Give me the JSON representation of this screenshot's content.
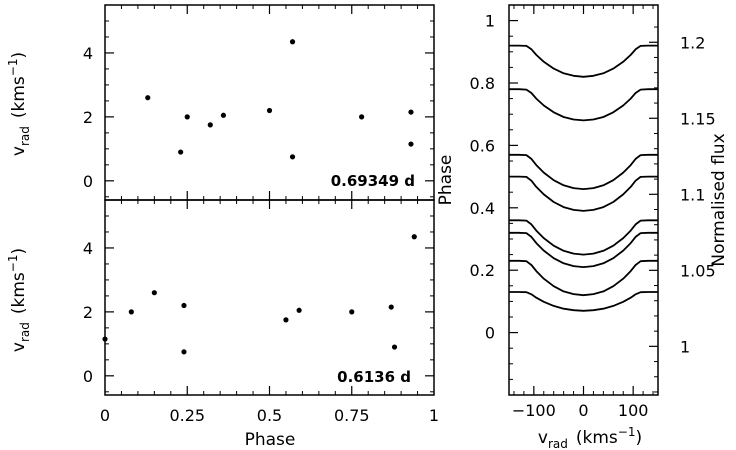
{
  "chart_data": [
    {
      "type": "scatter",
      "annotation": "0.69349 d",
      "xlabel": "",
      "ylabel": "v",
      "ylabel_sub": "rad",
      "ylabel_unit": "(kms",
      "ylabel_unit_sup": "−1",
      "ylabel_unit_close": ")",
      "xlim": [
        0,
        1
      ],
      "ylim": [
        -0.6,
        5.5
      ],
      "yticks": [
        0,
        2,
        4
      ],
      "ytick_labels": [
        "0",
        "2",
        "4"
      ],
      "points": [
        {
          "x": 0.13,
          "y": 2.6
        },
        {
          "x": 0.23,
          "y": 0.9
        },
        {
          "x": 0.25,
          "y": 2.0
        },
        {
          "x": 0.32,
          "y": 1.75
        },
        {
          "x": 0.36,
          "y": 2.05
        },
        {
          "x": 0.5,
          "y": 2.2
        },
        {
          "x": 0.57,
          "y": 4.35
        },
        {
          "x": 0.57,
          "y": 0.75
        },
        {
          "x": 0.78,
          "y": 2.0
        },
        {
          "x": 0.93,
          "y": 2.15
        },
        {
          "x": 0.93,
          "y": 1.15
        }
      ]
    },
    {
      "type": "scatter",
      "annotation": "0.6136 d",
      "xlabel": "Phase",
      "ylabel": "v",
      "ylabel_sub": "rad",
      "ylabel_unit": "(kms",
      "ylabel_unit_sup": "−1",
      "ylabel_unit_close": ")",
      "xlim": [
        0,
        1
      ],
      "ylim": [
        -0.6,
        5.5
      ],
      "xticks": [
        0,
        0.25,
        0.5,
        0.75,
        1
      ],
      "xtick_labels": [
        "0",
        "0.25",
        "0.5",
        "0.75",
        "1"
      ],
      "yticks": [
        0,
        2,
        4
      ],
      "ytick_labels": [
        "0",
        "2",
        "4"
      ],
      "points": [
        {
          "x": 0.0,
          "y": 1.15
        },
        {
          "x": 0.08,
          "y": 2.0
        },
        {
          "x": 0.15,
          "y": 2.6
        },
        {
          "x": 0.24,
          "y": 2.2
        },
        {
          "x": 0.24,
          "y": 0.75
        },
        {
          "x": 0.55,
          "y": 1.75
        },
        {
          "x": 0.59,
          "y": 2.05
        },
        {
          "x": 0.75,
          "y": 2.0
        },
        {
          "x": 0.87,
          "y": 2.15
        },
        {
          "x": 0.88,
          "y": 0.9
        },
        {
          "x": 0.94,
          "y": 4.35
        }
      ]
    },
    {
      "type": "line",
      "xlabel": "v",
      "xlabel_sub": "rad",
      "xlabel_unit": "(kms",
      "xlabel_unit_sup": "−1",
      "xlabel_unit_close": ")",
      "ylabel": "Phase",
      "y2label": "Normalised flux",
      "xlim": [
        -150,
        150
      ],
      "ylim": [
        -0.2,
        1.05
      ],
      "xticks": [
        -100,
        0,
        100
      ],
      "xtick_labels": [
        "−100",
        "0",
        "100"
      ],
      "yticks": [
        0,
        0.2,
        0.4,
        0.6,
        0.8,
        1
      ],
      "ytick_labels": [
        "0",
        "0.2",
        "0.4",
        "0.6",
        "0.8",
        "1"
      ],
      "y2lim": [
        0.968,
        1.2245
      ],
      "y2ticks": [
        1,
        1.05,
        1.1,
        1.15,
        1.2
      ],
      "y2tick_labels": [
        "1",
        "1.05",
        "1.1",
        "1.15",
        "1.2"
      ],
      "profile_x": [
        -150,
        -130,
        -115,
        -105,
        -95,
        -80,
        -60,
        -40,
        -20,
        0,
        20,
        40,
        60,
        80,
        95,
        105,
        115,
        130,
        150
      ],
      "profile_shape": [
        0,
        0,
        -0.01,
        -0.12,
        -0.3,
        -0.52,
        -0.74,
        -0.89,
        -0.97,
        -1.0,
        -0.97,
        -0.89,
        -0.74,
        -0.52,
        -0.3,
        -0.12,
        -0.01,
        0,
        0
      ],
      "profiles": [
        {
          "phase": 0.92,
          "continuum": 0.92,
          "depth": 0.1
        },
        {
          "phase": 0.78,
          "continuum": 0.78,
          "depth": 0.1
        },
        {
          "phase": 0.57,
          "continuum": 0.57,
          "depth": 0.11
        },
        {
          "phase": 0.5,
          "continuum": 0.5,
          "depth": 0.11
        },
        {
          "phase": 0.36,
          "continuum": 0.36,
          "depth": 0.11
        },
        {
          "phase": 0.32,
          "continuum": 0.32,
          "depth": 0.11
        },
        {
          "phase": 0.23,
          "continuum": 0.23,
          "depth": 0.11
        },
        {
          "phase": 0.13,
          "continuum": 0.13,
          "depth": 0.06
        }
      ]
    }
  ]
}
